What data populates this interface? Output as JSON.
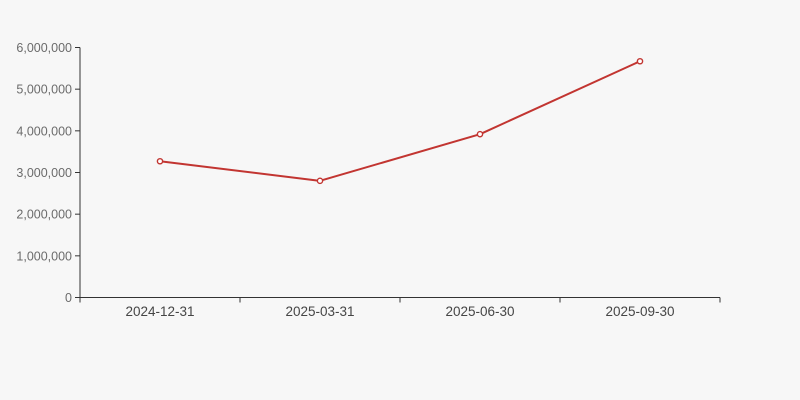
{
  "chart_data": {
    "type": "line",
    "title": "",
    "categories": [
      "2024-12-31",
      "2025-03-31",
      "2025-06-30",
      "2025-09-30"
    ],
    "series": [
      {
        "values": [
          3270000,
          2800000,
          3920000,
          5670000
        ]
      }
    ],
    "xlabel": "",
    "ylabel": "",
    "ylim": [
      0,
      6000000
    ],
    "y_tick_interval": 1000000,
    "y_tick_labels": [
      "0",
      "1,000,000",
      "2,000,000",
      "3,000,000",
      "4,000,000",
      "5,000,000",
      "6,000,000"
    ],
    "grid": false,
    "legend_position": "none",
    "marker_style": "hollow-circle",
    "colors": {
      "line": "#c23531",
      "marker_fill": "#ffffff",
      "background": "#f7f7f7",
      "axis": "#333333",
      "y_tick_label": "#6b6b6b",
      "x_tick_label": "#454545"
    }
  }
}
